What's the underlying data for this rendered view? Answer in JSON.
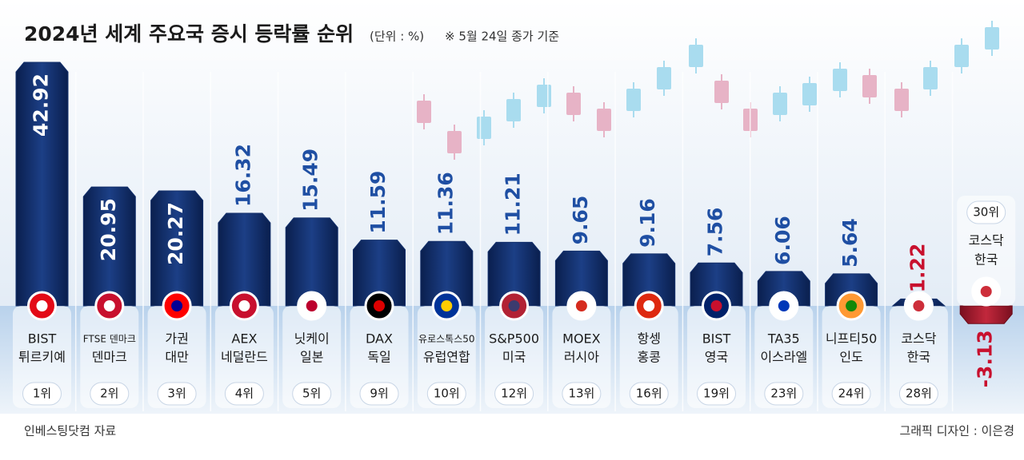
{
  "chart_data": {
    "type": "bar",
    "title": "2024년 세계 주요국 증시 등락률 순위",
    "subtitle": "(단위 : %)",
    "note": "※ 5월 24일 종가 기준",
    "source": "인베스팅닷컴 자료",
    "credit": "그래픽 디자인 : 이은경",
    "categories": [
      "BIST",
      "FTSE 덴마크",
      "가권",
      "AEX",
      "닛케이",
      "DAX",
      "유로스톡스50",
      "S&P500",
      "MOEX",
      "항셍",
      "BIST",
      "TA35",
      "니프티50",
      "코스닥",
      "코스닥"
    ],
    "countries": [
      "튀르키예",
      "덴마크",
      "대만",
      "네덜란드",
      "일본",
      "독일",
      "유럽연합",
      "미국",
      "러시아",
      "홍콩",
      "영국",
      "이스라엘",
      "인도",
      "한국",
      "한국"
    ],
    "ranks": [
      "1위",
      "2위",
      "3위",
      "4위",
      "5위",
      "9위",
      "10위",
      "12위",
      "13위",
      "16위",
      "19위",
      "23위",
      "24위",
      "28위",
      "30위"
    ],
    "values": [
      42.92,
      20.95,
      20.27,
      16.32,
      15.49,
      11.59,
      11.36,
      11.21,
      9.65,
      9.16,
      7.56,
      6.06,
      5.64,
      1.22,
      -3.13
    ],
    "color": "#14306b"
  }
}
